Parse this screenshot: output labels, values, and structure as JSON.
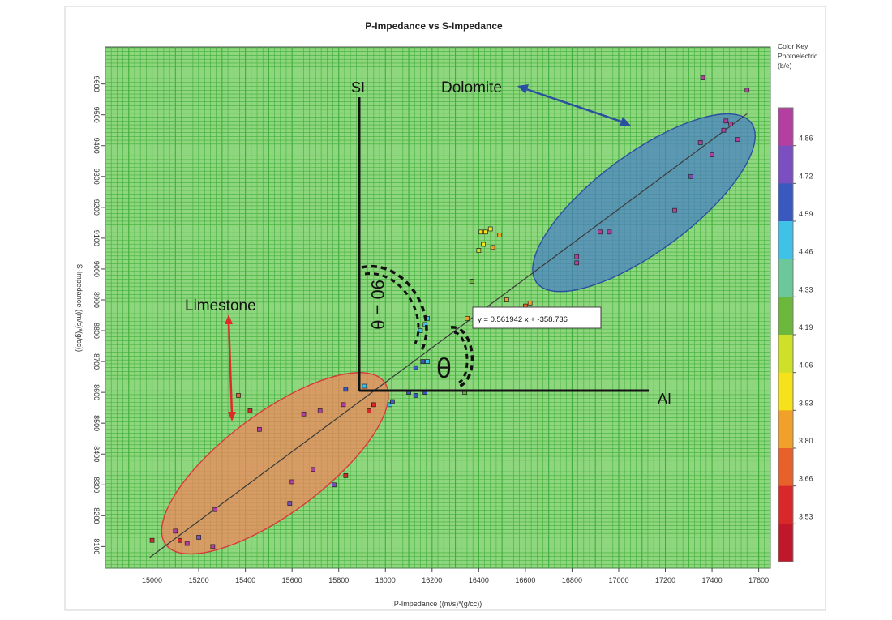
{
  "chart_data": {
    "type": "scatter",
    "title": "P-Impedance vs S-Impedance",
    "xlabel": "P-Impedance ((m/s)*(g/cc))",
    "ylabel": "S-Impedance ((m/s)*(g/cc))",
    "xlim": [
      14800,
      17650
    ],
    "ylim": [
      8030,
      9720
    ],
    "x_ticks": [
      15000,
      15200,
      15400,
      15600,
      15800,
      16000,
      16200,
      16400,
      16600,
      16800,
      17000,
      17200,
      17400,
      17600
    ],
    "y_ticks": [
      8100,
      8200,
      8300,
      8400,
      8500,
      8600,
      8700,
      8800,
      8900,
      9000,
      9100,
      9200,
      9300,
      9400,
      9500,
      9600
    ],
    "grid": true,
    "grid_color": "#3fae3a",
    "plot_background": "#8fd77e",
    "regression": {
      "label": "y = 0.561942 x + -358.736",
      "slope": 0.561942,
      "intercept": -358.736,
      "x_range": [
        14990,
        17550
      ]
    },
    "color_key": {
      "title_lines": [
        "Color Key",
        "Photoelectric",
        "(b/e)"
      ],
      "labels": [
        "4.86",
        "4.72",
        "4.59",
        "4.46",
        "4.33",
        "4.19",
        "4.06",
        "3.93",
        "3.80",
        "3.66",
        "3.53"
      ],
      "colors": [
        "#b43fa0",
        "#7b4fc1",
        "#3a59c0",
        "#3fc1e8",
        "#6cc89a",
        "#6cb83c",
        "#cfe02a",
        "#f5e21a",
        "#f1a02a",
        "#e8602a",
        "#d8282a",
        "#c0182a"
      ]
    },
    "annotations": {
      "dolomite": "Dolomite",
      "limestone": "Limestone",
      "si_axis": "SI",
      "ai_axis": "AI",
      "theta": "θ",
      "ninety_minus_theta": "90 − θ"
    },
    "zones": [
      {
        "name": "Dolomite",
        "color": "#4a80c8",
        "stroke": "#2a4fa0",
        "center": [
          17108,
          9215
        ],
        "rx": 900,
        "ry": 120
      },
      {
        "name": "Limestone",
        "color": "#f2855c",
        "stroke": "#d83a3a",
        "center": [
          15527,
          8370
        ],
        "rx": 820,
        "ry": 115
      }
    ],
    "points": [
      {
        "x": 15370,
        "y": 8590,
        "c": "#e8602a"
      },
      {
        "x": 15420,
        "y": 8540,
        "c": "#d8282a"
      },
      {
        "x": 15460,
        "y": 8480,
        "c": "#b43fa0"
      },
      {
        "x": 15120,
        "y": 8120,
        "c": "#d8282a"
      },
      {
        "x": 15000,
        "y": 8120,
        "c": "#d8282a"
      },
      {
        "x": 15100,
        "y": 8150,
        "c": "#b43fa0"
      },
      {
        "x": 15150,
        "y": 8110,
        "c": "#b43fa0"
      },
      {
        "x": 15200,
        "y": 8130,
        "c": "#7b4fc1"
      },
      {
        "x": 15260,
        "y": 8100,
        "c": "#b43fa0"
      },
      {
        "x": 15270,
        "y": 8220,
        "c": "#b43fa0"
      },
      {
        "x": 15600,
        "y": 8310,
        "c": "#b43fa0"
      },
      {
        "x": 15590,
        "y": 8240,
        "c": "#7b4fc1"
      },
      {
        "x": 15650,
        "y": 8530,
        "c": "#b43fa0"
      },
      {
        "x": 15690,
        "y": 8350,
        "c": "#b43fa0"
      },
      {
        "x": 15720,
        "y": 8540,
        "c": "#b43fa0"
      },
      {
        "x": 15780,
        "y": 8300,
        "c": "#7b4fc1"
      },
      {
        "x": 15820,
        "y": 8560,
        "c": "#b43fa0"
      },
      {
        "x": 15830,
        "y": 8610,
        "c": "#3a59c0"
      },
      {
        "x": 15830,
        "y": 8330,
        "c": "#d8282a"
      },
      {
        "x": 15930,
        "y": 8540,
        "c": "#d8282a"
      },
      {
        "x": 15950,
        "y": 8560,
        "c": "#d8282a"
      },
      {
        "x": 15910,
        "y": 8620,
        "c": "#3fc1e8"
      },
      {
        "x": 16020,
        "y": 8560,
        "c": "#3fc1e8"
      },
      {
        "x": 16030,
        "y": 8570,
        "c": "#3a59c0"
      },
      {
        "x": 16130,
        "y": 8590,
        "c": "#3a59c0"
      },
      {
        "x": 16170,
        "y": 8600,
        "c": "#3a59c0"
      },
      {
        "x": 16100,
        "y": 8600,
        "c": "#3a59c0"
      },
      {
        "x": 16130,
        "y": 8680,
        "c": "#3a59c0"
      },
      {
        "x": 16160,
        "y": 8700,
        "c": "#3a59c0"
      },
      {
        "x": 16180,
        "y": 8700,
        "c": "#3fc1e8"
      },
      {
        "x": 16150,
        "y": 8800,
        "c": "#3fc1e8"
      },
      {
        "x": 16170,
        "y": 8820,
        "c": "#3fc1e8"
      },
      {
        "x": 16180,
        "y": 8840,
        "c": "#3fc1e8"
      },
      {
        "x": 16340,
        "y": 8600,
        "c": "#6cb83c"
      },
      {
        "x": 16350,
        "y": 8840,
        "c": "#f1a02a"
      },
      {
        "x": 16370,
        "y": 8960,
        "c": "#6cb83c"
      },
      {
        "x": 16400,
        "y": 9060,
        "c": "#cfe02a"
      },
      {
        "x": 16420,
        "y": 9080,
        "c": "#f5e21a"
      },
      {
        "x": 16460,
        "y": 9070,
        "c": "#f1a02a"
      },
      {
        "x": 16410,
        "y": 9120,
        "c": "#f5e21a"
      },
      {
        "x": 16430,
        "y": 9120,
        "c": "#f5e21a"
      },
      {
        "x": 16450,
        "y": 9130,
        "c": "#f5e21a"
      },
      {
        "x": 16490,
        "y": 9110,
        "c": "#f1a02a"
      },
      {
        "x": 16520,
        "y": 8900,
        "c": "#f1a02a"
      },
      {
        "x": 16580,
        "y": 8870,
        "c": "#f1a02a"
      },
      {
        "x": 16600,
        "y": 8880,
        "c": "#e8602a"
      },
      {
        "x": 16620,
        "y": 8890,
        "c": "#f1a02a"
      },
      {
        "x": 16820,
        "y": 9020,
        "c": "#b43fa0"
      },
      {
        "x": 16820,
        "y": 9040,
        "c": "#b43fa0"
      },
      {
        "x": 16920,
        "y": 9120,
        "c": "#b43fa0"
      },
      {
        "x": 16960,
        "y": 9120,
        "c": "#b43fa0"
      },
      {
        "x": 17240,
        "y": 9190,
        "c": "#b43fa0"
      },
      {
        "x": 17310,
        "y": 9300,
        "c": "#7b4fc1"
      },
      {
        "x": 17350,
        "y": 9410,
        "c": "#b43fa0"
      },
      {
        "x": 17360,
        "y": 9620,
        "c": "#b43fa0"
      },
      {
        "x": 17400,
        "y": 9370,
        "c": "#b43fa0"
      },
      {
        "x": 17450,
        "y": 9450,
        "c": "#b43fa0"
      },
      {
        "x": 17460,
        "y": 9480,
        "c": "#b43fa0"
      },
      {
        "x": 17480,
        "y": 9470,
        "c": "#b43fa0"
      },
      {
        "x": 17510,
        "y": 9420,
        "c": "#b43fa0"
      },
      {
        "x": 17550,
        "y": 9580,
        "c": "#b43fa0"
      }
    ]
  }
}
